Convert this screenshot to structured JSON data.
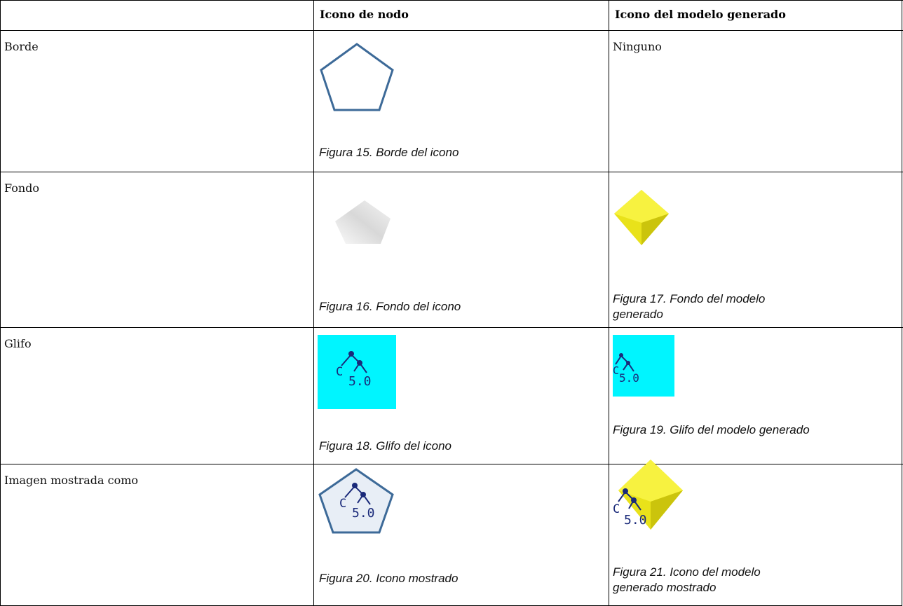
{
  "table": {
    "header": [
      "Icono de nodo",
      "Icono del modelo generado"
    ],
    "rows": [
      {
        "label": "Borde",
        "node_caption": "Figura 15. Borde del icono",
        "generated_text": "Ninguno"
      },
      {
        "label": "Fondo",
        "node_caption": "Figura 16. Fondo del icono",
        "generated_caption": "Figura 17. Fondo del modelo generado"
      },
      {
        "label": "Glifo",
        "node_caption": "Figura 18. Glifo del icono",
        "generated_caption": "Figura 19. Glifo del modelo generado"
      },
      {
        "label": "Imagen mostrada como",
        "node_caption": "Figura 20. Icono mostrado",
        "generated_caption": "Figura 21. Icono del modelo generado mostrado"
      }
    ],
    "glyph": {
      "letter": "C",
      "version": "5.0"
    }
  }
}
